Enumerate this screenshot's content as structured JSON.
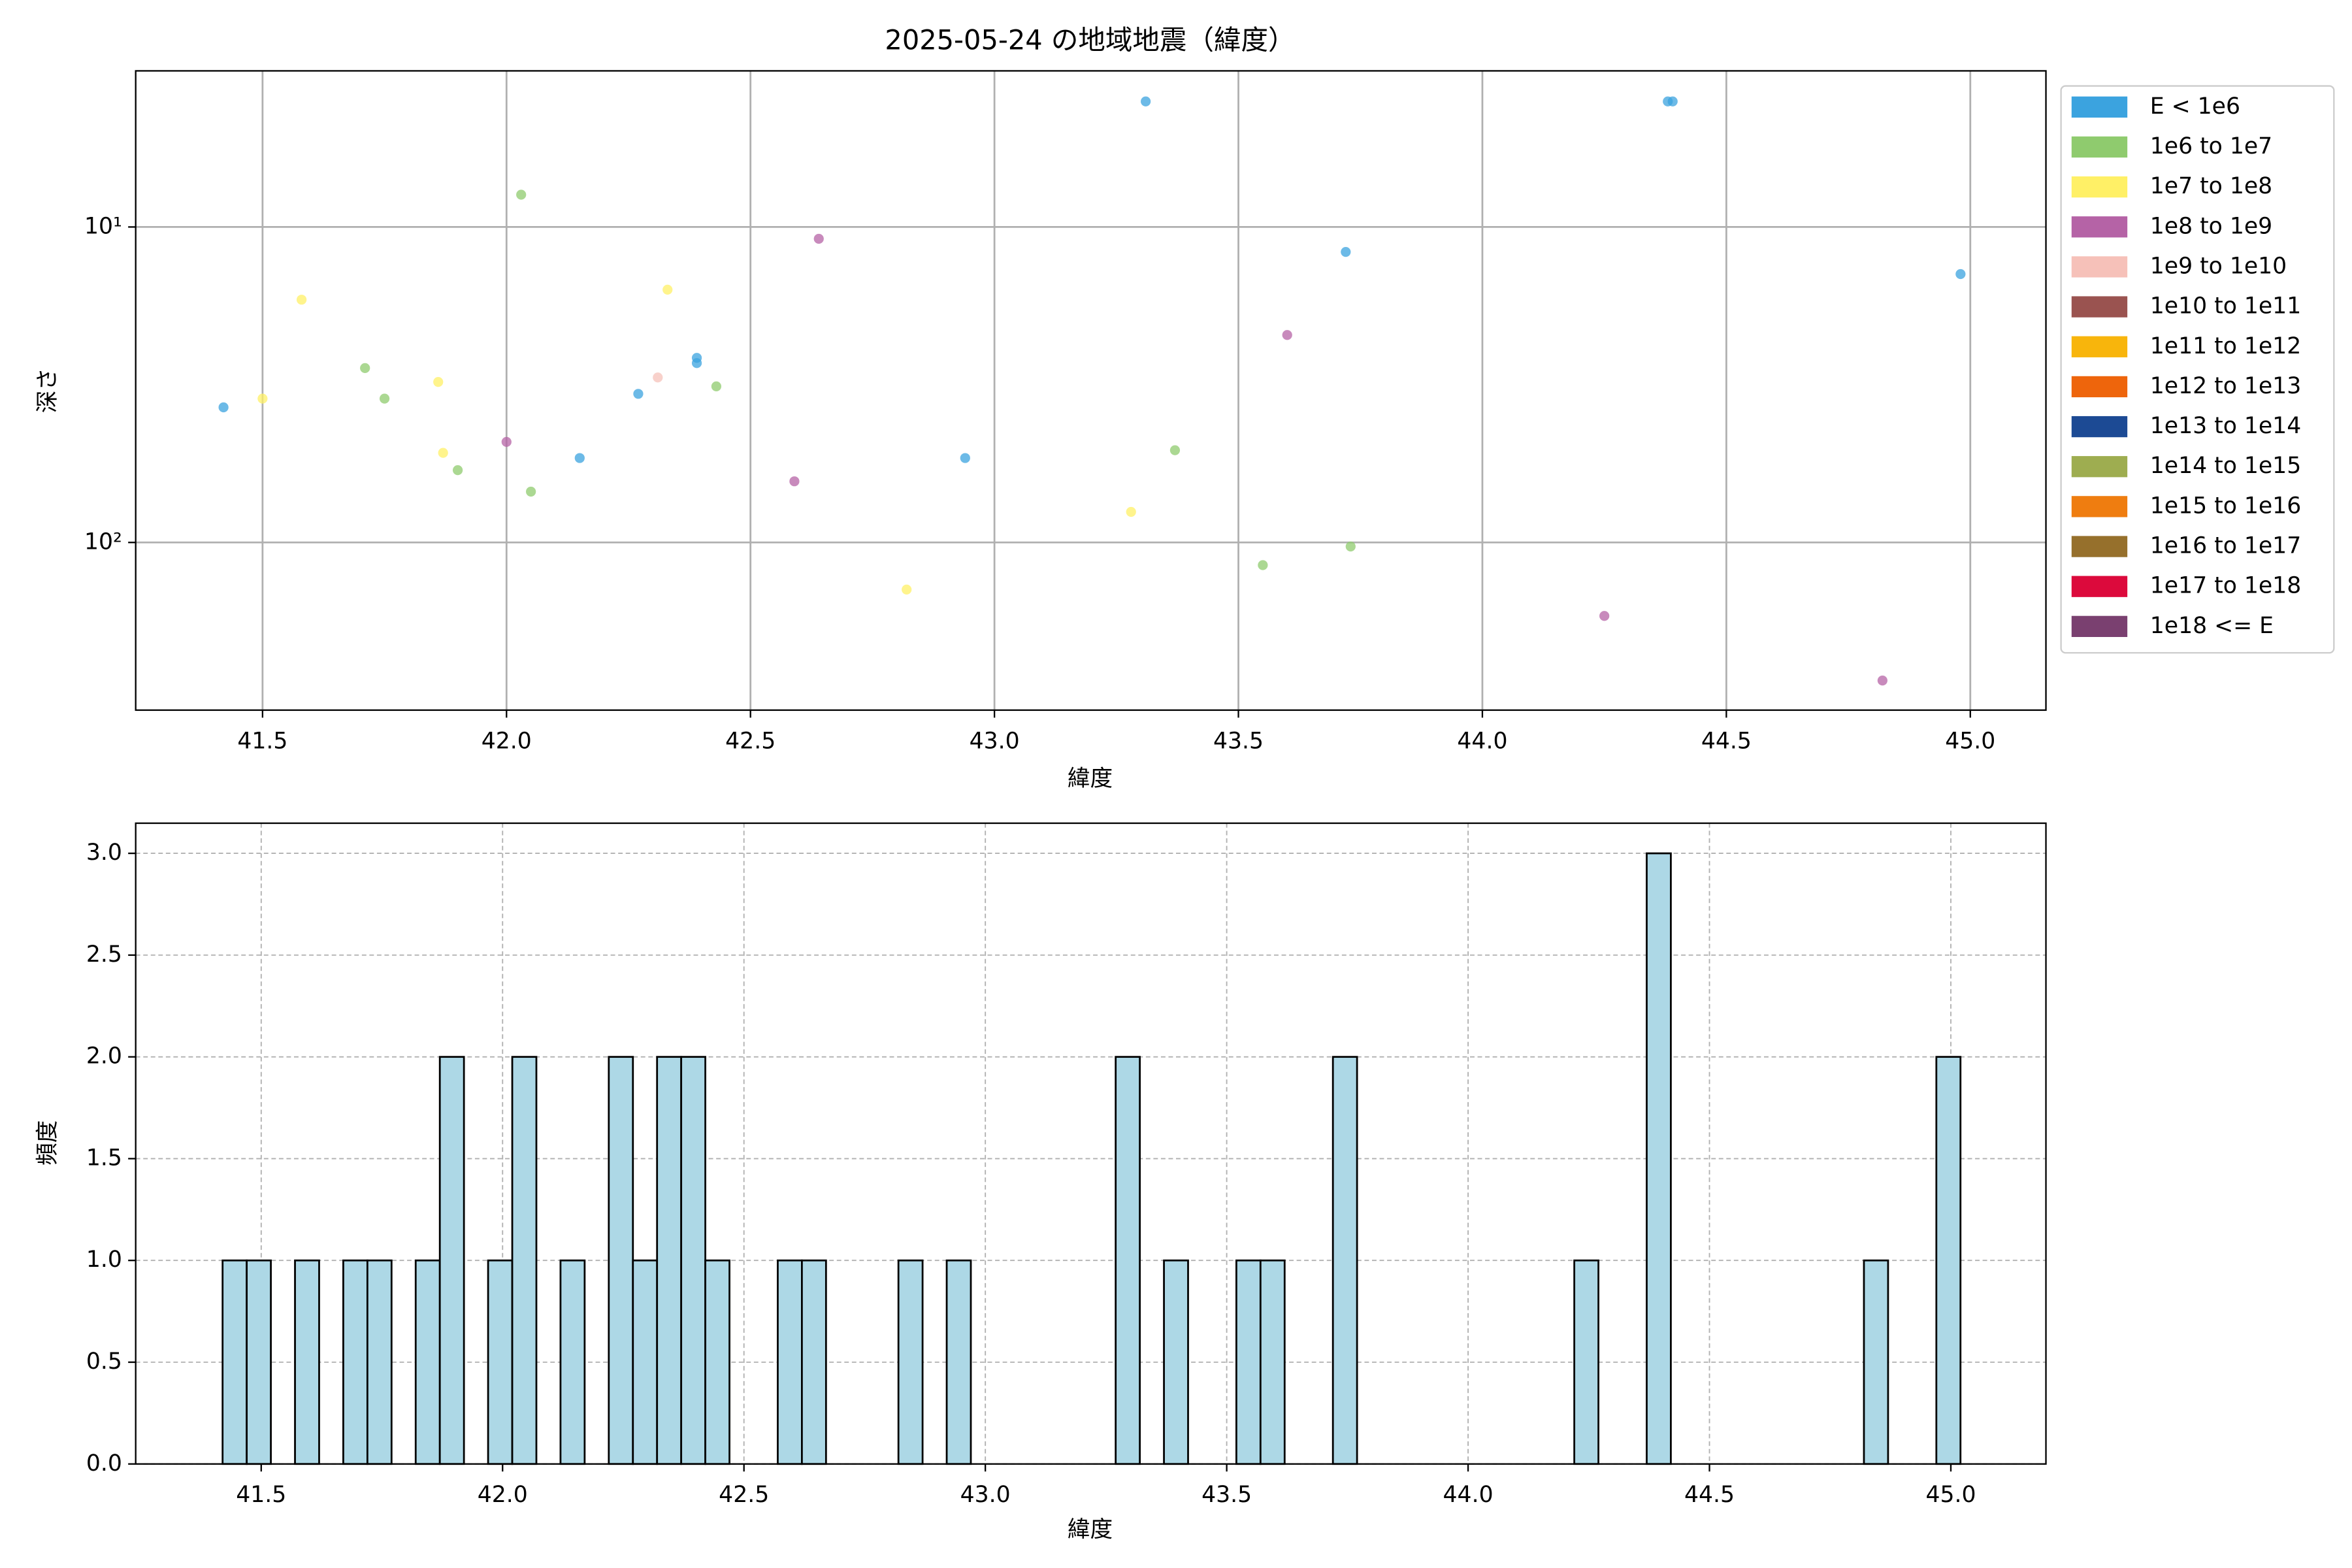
{
  "chart_data": [
    {
      "type": "scatter",
      "title": "2025-05-24 の地域地震（緯度）",
      "xlabel": "緯度",
      "ylabel": "深さ",
      "xlim": [
        41.24,
        45.155
      ],
      "xticks": [
        41.5,
        {
          "value": 42,
          "label": "42.0"
        },
        42.5,
        {
          "value": 43,
          "label": "43.0"
        },
        43.5,
        {
          "value": 44,
          "label": "44.0"
        },
        44.5,
        {
          "value": 45,
          "label": "45.0"
        }
      ],
      "ylim": [
        3.2,
        340
      ],
      "y_scale": "log",
      "y_inverted": true,
      "yticks": [
        {
          "value": 10,
          "label": "10¹"
        },
        {
          "value": 100,
          "label": "10²"
        }
      ],
      "grid": true,
      "legend": "outside right",
      "series": [
        {
          "name": "E < 1e6",
          "color": "#3ba3df",
          "x": [
            41.42,
            43.31,
            44.38,
            44.39,
            43.72,
            44.98,
            42.39,
            42.39,
            42.27,
            42.15,
            42.94
          ],
          "values": [
            37.3,
            4.0,
            4.0,
            4.0,
            12.0,
            14.1,
            26,
            27,
            33.8,
            54,
            54
          ]
        },
        {
          "name": "1e6 to 1e7",
          "color": "#8fcb6e",
          "x": [
            42.03,
            41.71,
            41.75,
            42.43,
            41.9,
            42.05,
            43.37,
            43.55,
            43.73
          ],
          "values": [
            7.9,
            28,
            35,
            32,
            59,
            69,
            51,
            118,
            103
          ]
        },
        {
          "name": "1e7 to 1e8",
          "color": "#fff066",
          "x": [
            41.58,
            42.33,
            41.86,
            41.5,
            41.87,
            43.28,
            42.82
          ],
          "values": [
            17,
            15.8,
            31,
            35,
            52,
            80,
            141
          ]
        },
        {
          "name": "1e8 to 1e9",
          "color": "#b563a6",
          "x": [
            42.64,
            43.6,
            42.0,
            42.59,
            44.25,
            44.82
          ],
          "values": [
            10.9,
            22,
            48,
            64,
            171,
            274
          ]
        },
        {
          "name": "1e9 to 1e10",
          "color": "#f6c1b9",
          "x": [
            42.31
          ],
          "values": [
            30
          ]
        },
        {
          "name": "1e10 to 1e11",
          "color": "#9a5350",
          "x": [],
          "values": []
        },
        {
          "name": "1e11 to 1e12",
          "color": "#f8b50c",
          "x": [],
          "values": []
        },
        {
          "name": "1e12 to 1e13",
          "color": "#ee650c",
          "x": [],
          "values": []
        },
        {
          "name": "1e13 to 1e14",
          "color": "#1c4a94",
          "x": [],
          "values": []
        },
        {
          "name": "1e14 to 1e15",
          "color": "#9ead50",
          "x": [],
          "values": []
        },
        {
          "name": "1e15 to 1e16",
          "color": "#ef7d10",
          "x": [],
          "values": []
        },
        {
          "name": "1e16 to 1e17",
          "color": "#96702c",
          "x": [],
          "values": []
        },
        {
          "name": "1e17 to 1e18",
          "color": "#dc0a3c",
          "x": [],
          "values": []
        },
        {
          "name": "1e18 <= E",
          "color": "#7a4070",
          "x": [],
          "values": []
        }
      ]
    },
    {
      "type": "histogram",
      "xlabel": "緯度",
      "ylabel": "頻度",
      "color": "#add8e6",
      "edgecolor": "#000000",
      "grid": true,
      "xlim": [
        41.24,
        45.197
      ],
      "xticks": [
        41.5,
        {
          "value": 42,
          "label": "42.0"
        },
        42.5,
        {
          "value": 43,
          "label": "43.0"
        },
        43.5,
        {
          "value": 44,
          "label": "44.0"
        },
        44.5,
        {
          "value": 45,
          "label": "45.0"
        }
      ],
      "ylim": [
        0,
        3.148
      ],
      "yticks": [
        {
          "value": 0,
          "label": "0.0"
        },
        0.5,
        {
          "value": 1,
          "label": "1.0"
        },
        1.5,
        {
          "value": 2,
          "label": "2.0"
        },
        2.5,
        {
          "value": 3,
          "label": "3.0"
        }
      ],
      "bins": [
        41.42,
        41.47,
        41.52,
        41.57,
        41.62,
        41.67,
        41.72,
        41.77,
        41.82,
        41.87,
        41.92,
        41.97,
        42.02,
        42.07,
        42.12,
        42.17,
        42.22,
        42.27,
        42.32,
        42.37,
        42.42,
        42.47,
        42.52,
        42.57,
        42.62,
        42.67,
        42.72,
        42.77,
        42.82,
        42.87,
        42.92,
        42.97,
        43.02,
        43.07,
        43.12,
        43.17,
        43.22,
        43.27,
        43.32,
        43.37,
        43.42,
        43.47,
        43.52,
        43.57,
        43.62,
        43.67,
        43.72,
        43.77,
        43.82,
        43.87,
        43.92,
        43.97,
        44.02,
        44.07,
        44.12,
        44.17,
        44.22,
        44.27,
        44.32,
        44.37,
        44.42,
        44.47,
        44.52,
        44.57,
        44.62,
        44.67,
        44.72,
        44.77,
        44.82,
        44.87,
        44.92,
        44.97,
        45.02
      ],
      "values": [
        1,
        1,
        0,
        1,
        0,
        1,
        1,
        0,
        1,
        2,
        0,
        1,
        2,
        0,
        1,
        0,
        2,
        1,
        2,
        2,
        1,
        0,
        0,
        1,
        1,
        0,
        0,
        0,
        1,
        0,
        1,
        0,
        0,
        0,
        0,
        0,
        0,
        2,
        0,
        1,
        0,
        0,
        1,
        1,
        0,
        0,
        2,
        0,
        0,
        0,
        0,
        0,
        0,
        0,
        0,
        0,
        1,
        0,
        0,
        3,
        0,
        0,
        0,
        0,
        0,
        0,
        0,
        0,
        1,
        0,
        0,
        2
      ]
    }
  ]
}
